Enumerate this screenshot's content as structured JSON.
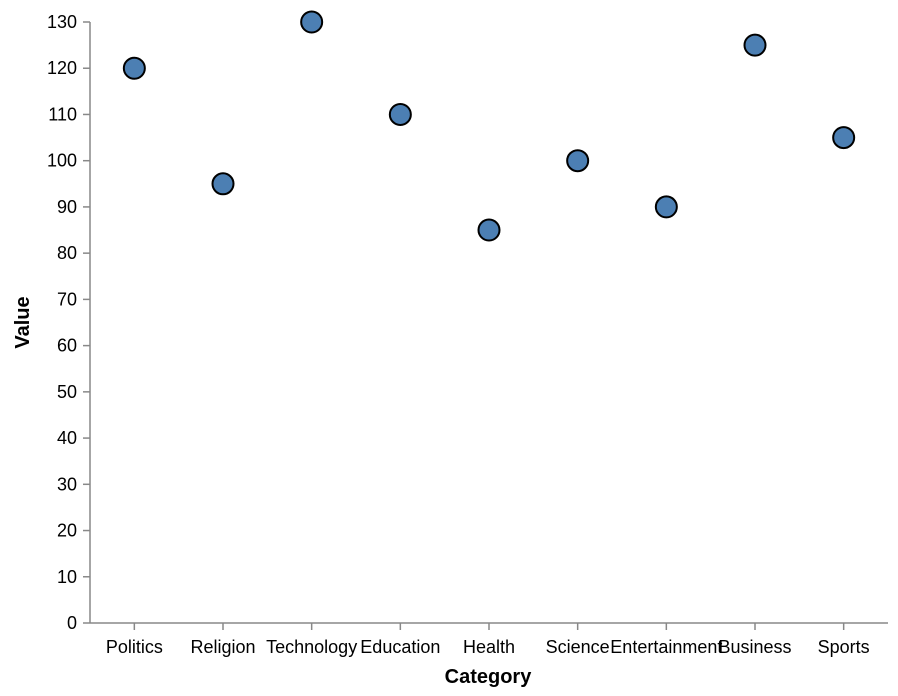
{
  "chart_data": {
    "type": "scatter",
    "xlabel": "Category",
    "ylabel": "Value",
    "categories": [
      "Politics",
      "Religion",
      "Technology",
      "Education",
      "Health",
      "Science",
      "Entertainment",
      "Business",
      "Sports"
    ],
    "values": [
      120,
      95,
      130,
      110,
      85,
      100,
      90,
      125,
      105
    ],
    "ylim": [
      0,
      130
    ],
    "yticks": [
      0,
      10,
      20,
      30,
      40,
      50,
      60,
      70,
      80,
      90,
      100,
      110,
      120,
      130
    ],
    "grid": false,
    "point_color": "#4c7fb3",
    "point_stroke": "#000000"
  }
}
